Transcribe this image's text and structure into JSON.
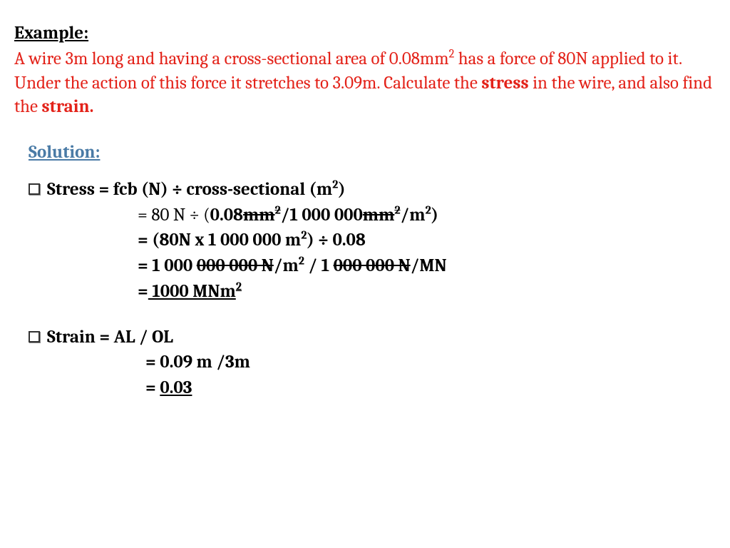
{
  "header": {
    "example_label": "Example:",
    "problem_pre": "A wire 3m long and having a cross-sectional area of 0.08mm",
    "problem_sup1": "2",
    "problem_mid1": " has a force of 80N applied to it. Under the action of this force it stretches to 3.09m. Calculate the ",
    "problem_stress": "stress",
    "problem_mid2": " in the wire, and also find the ",
    "problem_strain": "strain.",
    "solution_label": "Solution:"
  },
  "stress": {
    "lhs": "Stress",
    "eq": " = ",
    "rhs1a": "fcb (N) ÷ cross-sectional (m",
    "rhs1sup": "2",
    "rhs1b": ")",
    "l2a": "= 80 N ÷ (",
    "l2b": "0.08",
    "l2c": "mm",
    "l2csup": "2",
    "l2d": "/1 000 000",
    "l2e": "mm",
    "l2esup": "2",
    "l2f": "/m",
    "l2fsup": "2",
    "l2g": ")",
    "l3a": "= (80N x 1 000 000 m",
    "l3sup": "2",
    "l3b": ") ÷ 0.08",
    "l4a": "= 1 000 ",
    "l4b": "000 000 N",
    "l4c": "/m",
    "l4sup": "2",
    "l4d": " / 1 ",
    "l4e": "000 000 N",
    "l4f": "/MN",
    "l5a": "=",
    "l5b": " 1000 MNm",
    "l5sup": "2"
  },
  "strain": {
    "lhs": " Strain ",
    "eq": " = ",
    "rhs1": "AL / OL",
    "l2": "= 0.09 m /3m",
    "l3a": "= ",
    "l3b": "0.03"
  },
  "colors": {
    "problem": "#e32219",
    "solution": "#4a7ba6",
    "text": "#000000",
    "bg": "#ffffff"
  }
}
